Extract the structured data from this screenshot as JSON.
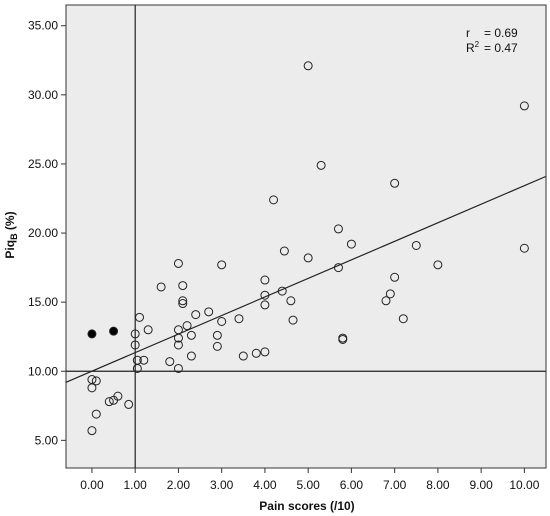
{
  "chart_data": {
    "type": "scatter",
    "title": "",
    "xlabel": "Pain scores (/10)",
    "ylabel_main": "Piq",
    "ylabel_sub": "B",
    "ylabel_unit": " (%)",
    "xlim": [
      -0.6,
      10.5
    ],
    "ylim": [
      3.0,
      36.5
    ],
    "x_ticks": [
      0,
      1,
      2,
      3,
      4,
      5,
      6,
      7,
      8,
      9,
      10
    ],
    "x_tick_labels": [
      "0.00",
      "1.00",
      "2.00",
      "3.00",
      "4.00",
      "5.00",
      "6.00",
      "7.00",
      "8.00",
      "9.00",
      "10.00"
    ],
    "y_ticks": [
      5,
      10,
      15,
      20,
      25,
      30,
      35
    ],
    "y_tick_labels": [
      "5.00",
      "10.00",
      "15.00",
      "20.00",
      "25.00",
      "30.00",
      "35.00"
    ],
    "grid": false,
    "reference_lines": {
      "x": 1.0,
      "y": 10.0
    },
    "fit_line": {
      "x0": -0.6,
      "y0": 9.2,
      "x1": 10.5,
      "y1": 24.1
    },
    "stats": {
      "r_label": "r",
      "r_value": "= 0.69",
      "r2_label": "R",
      "r2_sup": "2",
      "r2_value": "= 0.47"
    },
    "series": [
      {
        "marker": "open-circle",
        "points": [
          [
            0.0,
            5.7
          ],
          [
            0.0,
            8.8
          ],
          [
            0.0,
            9.4
          ],
          [
            0.1,
            9.3
          ],
          [
            0.1,
            6.9
          ],
          [
            0.4,
            7.8
          ],
          [
            0.5,
            7.9
          ],
          [
            0.6,
            8.2
          ],
          [
            0.85,
            7.6
          ],
          [
            1.0,
            12.7
          ],
          [
            1.0,
            11.9
          ],
          [
            1.05,
            10.2
          ],
          [
            1.05,
            10.8
          ],
          [
            1.1,
            13.9
          ],
          [
            1.2,
            10.8
          ],
          [
            1.3,
            13.0
          ],
          [
            1.6,
            16.1
          ],
          [
            1.8,
            10.7
          ],
          [
            2.0,
            17.8
          ],
          [
            2.0,
            13.0
          ],
          [
            2.0,
            12.4
          ],
          [
            2.0,
            11.9
          ],
          [
            2.0,
            10.2
          ],
          [
            2.1,
            16.2
          ],
          [
            2.1,
            15.1
          ],
          [
            2.1,
            14.9
          ],
          [
            2.2,
            13.3
          ],
          [
            2.3,
            12.6
          ],
          [
            2.3,
            11.1
          ],
          [
            2.4,
            14.1
          ],
          [
            2.7,
            14.3
          ],
          [
            2.9,
            12.6
          ],
          [
            2.9,
            11.8
          ],
          [
            3.0,
            17.7
          ],
          [
            3.0,
            13.6
          ],
          [
            3.4,
            13.8
          ],
          [
            3.5,
            11.1
          ],
          [
            3.8,
            11.3
          ],
          [
            4.0,
            16.6
          ],
          [
            4.0,
            15.5
          ],
          [
            4.0,
            14.8
          ],
          [
            4.0,
            11.4
          ],
          [
            4.2,
            22.4
          ],
          [
            4.4,
            15.8
          ],
          [
            4.45,
            18.7
          ],
          [
            4.6,
            15.1
          ],
          [
            4.65,
            13.7
          ],
          [
            5.0,
            32.1
          ],
          [
            5.0,
            18.2
          ],
          [
            5.3,
            24.9
          ],
          [
            5.7,
            20.3
          ],
          [
            5.7,
            17.5
          ],
          [
            5.8,
            12.4
          ],
          [
            5.8,
            12.3
          ],
          [
            6.0,
            19.2
          ],
          [
            6.8,
            15.1
          ],
          [
            6.9,
            15.6
          ],
          [
            7.0,
            23.6
          ],
          [
            7.0,
            16.8
          ],
          [
            7.2,
            13.8
          ],
          [
            7.5,
            19.1
          ],
          [
            8.0,
            17.7
          ],
          [
            10.0,
            29.2
          ],
          [
            10.0,
            18.9
          ]
        ]
      },
      {
        "marker": "filled-circle",
        "points": [
          [
            0.0,
            12.7
          ],
          [
            0.5,
            12.9
          ]
        ]
      }
    ]
  }
}
